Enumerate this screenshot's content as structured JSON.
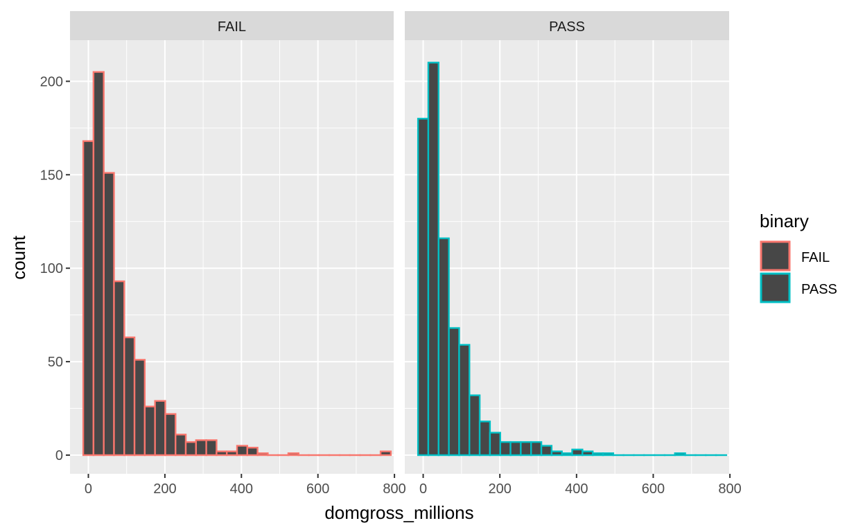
{
  "chart_data": {
    "type": "bar",
    "subtype": "faceted-histogram",
    "xlabel": "domgross_millions",
    "ylabel": "count",
    "xlim": [
      -48,
      798
    ],
    "ylim": [
      -10,
      222
    ],
    "x_ticks": [
      0,
      200,
      400,
      600,
      800
    ],
    "y_ticks": [
      0,
      50,
      100,
      150,
      200
    ],
    "bin_width": 26.8,
    "bin_starts": [
      -13.4,
      13.4,
      40.2,
      67.0,
      93.8,
      120.6,
      147.4,
      174.2,
      201.0,
      227.8,
      254.6,
      281.4,
      308.2,
      335.0,
      361.8,
      388.6,
      415.4,
      442.2,
      469.0,
      495.8,
      522.6,
      549.4,
      576.2,
      603.0,
      629.8,
      656.6,
      683.4,
      710.2,
      737.0,
      763.8
    ],
    "grid": true,
    "legend": {
      "title": "binary",
      "position": "right",
      "entries": [
        {
          "label": "FAIL",
          "color": "#F8766D"
        },
        {
          "label": "PASS",
          "color": "#00BFC4"
        }
      ]
    },
    "fill_color": "#474747",
    "panels": [
      {
        "strip_label": "FAIL",
        "color": "#F8766D",
        "counts": [
          168,
          205,
          151,
          93,
          63,
          51,
          26,
          29,
          22,
          11,
          7,
          8,
          8,
          2,
          2,
          5,
          4,
          1,
          0,
          0,
          1,
          0,
          0,
          0,
          0,
          0,
          0,
          0,
          0,
          2
        ]
      },
      {
        "strip_label": "PASS",
        "color": "#00BFC4",
        "counts": [
          180,
          210,
          116,
          68,
          59,
          32,
          18,
          12,
          7,
          7,
          7,
          7,
          5,
          2,
          1,
          3,
          2,
          1,
          1,
          0,
          0,
          0,
          0,
          0,
          0,
          1,
          0,
          0,
          0,
          0
        ]
      }
    ]
  }
}
